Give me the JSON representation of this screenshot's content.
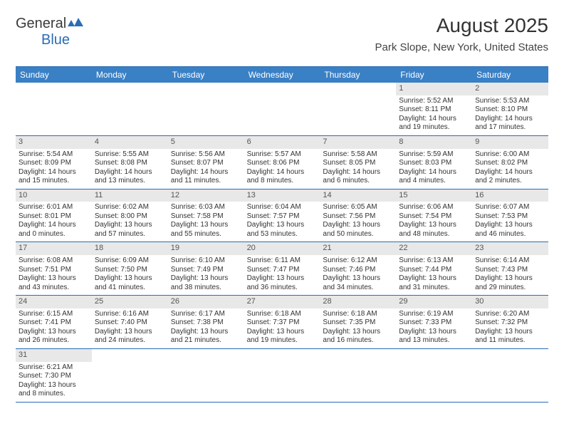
{
  "logo": {
    "part1": "General",
    "part2": "Blue"
  },
  "title": "August 2025",
  "subtitle": "Park Slope, New York, United States",
  "colors": {
    "header_bg": "#3a80c5",
    "accent_blue": "#2a6db5",
    "daynum_bg": "#e8e8e8",
    "text": "#333333"
  },
  "day_labels": [
    "Sunday",
    "Monday",
    "Tuesday",
    "Wednesday",
    "Thursday",
    "Friday",
    "Saturday"
  ],
  "weeks": [
    [
      null,
      null,
      null,
      null,
      null,
      {
        "n": "1",
        "sr": "5:52 AM",
        "ss": "8:11 PM",
        "dl": "14 hours",
        "dl2": "and 19 minutes."
      },
      {
        "n": "2",
        "sr": "5:53 AM",
        "ss": "8:10 PM",
        "dl": "14 hours",
        "dl2": "and 17 minutes."
      }
    ],
    [
      {
        "n": "3",
        "sr": "5:54 AM",
        "ss": "8:09 PM",
        "dl": "14 hours",
        "dl2": "and 15 minutes."
      },
      {
        "n": "4",
        "sr": "5:55 AM",
        "ss": "8:08 PM",
        "dl": "14 hours",
        "dl2": "and 13 minutes."
      },
      {
        "n": "5",
        "sr": "5:56 AM",
        "ss": "8:07 PM",
        "dl": "14 hours",
        "dl2": "and 11 minutes."
      },
      {
        "n": "6",
        "sr": "5:57 AM",
        "ss": "8:06 PM",
        "dl": "14 hours",
        "dl2": "and 8 minutes."
      },
      {
        "n": "7",
        "sr": "5:58 AM",
        "ss": "8:05 PM",
        "dl": "14 hours",
        "dl2": "and 6 minutes."
      },
      {
        "n": "8",
        "sr": "5:59 AM",
        "ss": "8:03 PM",
        "dl": "14 hours",
        "dl2": "and 4 minutes."
      },
      {
        "n": "9",
        "sr": "6:00 AM",
        "ss": "8:02 PM",
        "dl": "14 hours",
        "dl2": "and 2 minutes."
      }
    ],
    [
      {
        "n": "10",
        "sr": "6:01 AM",
        "ss": "8:01 PM",
        "dl": "14 hours",
        "dl2": "and 0 minutes."
      },
      {
        "n": "11",
        "sr": "6:02 AM",
        "ss": "8:00 PM",
        "dl": "13 hours",
        "dl2": "and 57 minutes."
      },
      {
        "n": "12",
        "sr": "6:03 AM",
        "ss": "7:58 PM",
        "dl": "13 hours",
        "dl2": "and 55 minutes."
      },
      {
        "n": "13",
        "sr": "6:04 AM",
        "ss": "7:57 PM",
        "dl": "13 hours",
        "dl2": "and 53 minutes."
      },
      {
        "n": "14",
        "sr": "6:05 AM",
        "ss": "7:56 PM",
        "dl": "13 hours",
        "dl2": "and 50 minutes."
      },
      {
        "n": "15",
        "sr": "6:06 AM",
        "ss": "7:54 PM",
        "dl": "13 hours",
        "dl2": "and 48 minutes."
      },
      {
        "n": "16",
        "sr": "6:07 AM",
        "ss": "7:53 PM",
        "dl": "13 hours",
        "dl2": "and 46 minutes."
      }
    ],
    [
      {
        "n": "17",
        "sr": "6:08 AM",
        "ss": "7:51 PM",
        "dl": "13 hours",
        "dl2": "and 43 minutes."
      },
      {
        "n": "18",
        "sr": "6:09 AM",
        "ss": "7:50 PM",
        "dl": "13 hours",
        "dl2": "and 41 minutes."
      },
      {
        "n": "19",
        "sr": "6:10 AM",
        "ss": "7:49 PM",
        "dl": "13 hours",
        "dl2": "and 38 minutes."
      },
      {
        "n": "20",
        "sr": "6:11 AM",
        "ss": "7:47 PM",
        "dl": "13 hours",
        "dl2": "and 36 minutes."
      },
      {
        "n": "21",
        "sr": "6:12 AM",
        "ss": "7:46 PM",
        "dl": "13 hours",
        "dl2": "and 34 minutes."
      },
      {
        "n": "22",
        "sr": "6:13 AM",
        "ss": "7:44 PM",
        "dl": "13 hours",
        "dl2": "and 31 minutes."
      },
      {
        "n": "23",
        "sr": "6:14 AM",
        "ss": "7:43 PM",
        "dl": "13 hours",
        "dl2": "and 29 minutes."
      }
    ],
    [
      {
        "n": "24",
        "sr": "6:15 AM",
        "ss": "7:41 PM",
        "dl": "13 hours",
        "dl2": "and 26 minutes."
      },
      {
        "n": "25",
        "sr": "6:16 AM",
        "ss": "7:40 PM",
        "dl": "13 hours",
        "dl2": "and 24 minutes."
      },
      {
        "n": "26",
        "sr": "6:17 AM",
        "ss": "7:38 PM",
        "dl": "13 hours",
        "dl2": "and 21 minutes."
      },
      {
        "n": "27",
        "sr": "6:18 AM",
        "ss": "7:37 PM",
        "dl": "13 hours",
        "dl2": "and 19 minutes."
      },
      {
        "n": "28",
        "sr": "6:18 AM",
        "ss": "7:35 PM",
        "dl": "13 hours",
        "dl2": "and 16 minutes."
      },
      {
        "n": "29",
        "sr": "6:19 AM",
        "ss": "7:33 PM",
        "dl": "13 hours",
        "dl2": "and 13 minutes."
      },
      {
        "n": "30",
        "sr": "6:20 AM",
        "ss": "7:32 PM",
        "dl": "13 hours",
        "dl2": "and 11 minutes."
      }
    ],
    [
      {
        "n": "31",
        "sr": "6:21 AM",
        "ss": "7:30 PM",
        "dl": "13 hours",
        "dl2": "and 8 minutes."
      },
      null,
      null,
      null,
      null,
      null,
      null
    ]
  ],
  "labels": {
    "sunrise": "Sunrise:",
    "sunset": "Sunset:",
    "daylight": "Daylight:"
  }
}
